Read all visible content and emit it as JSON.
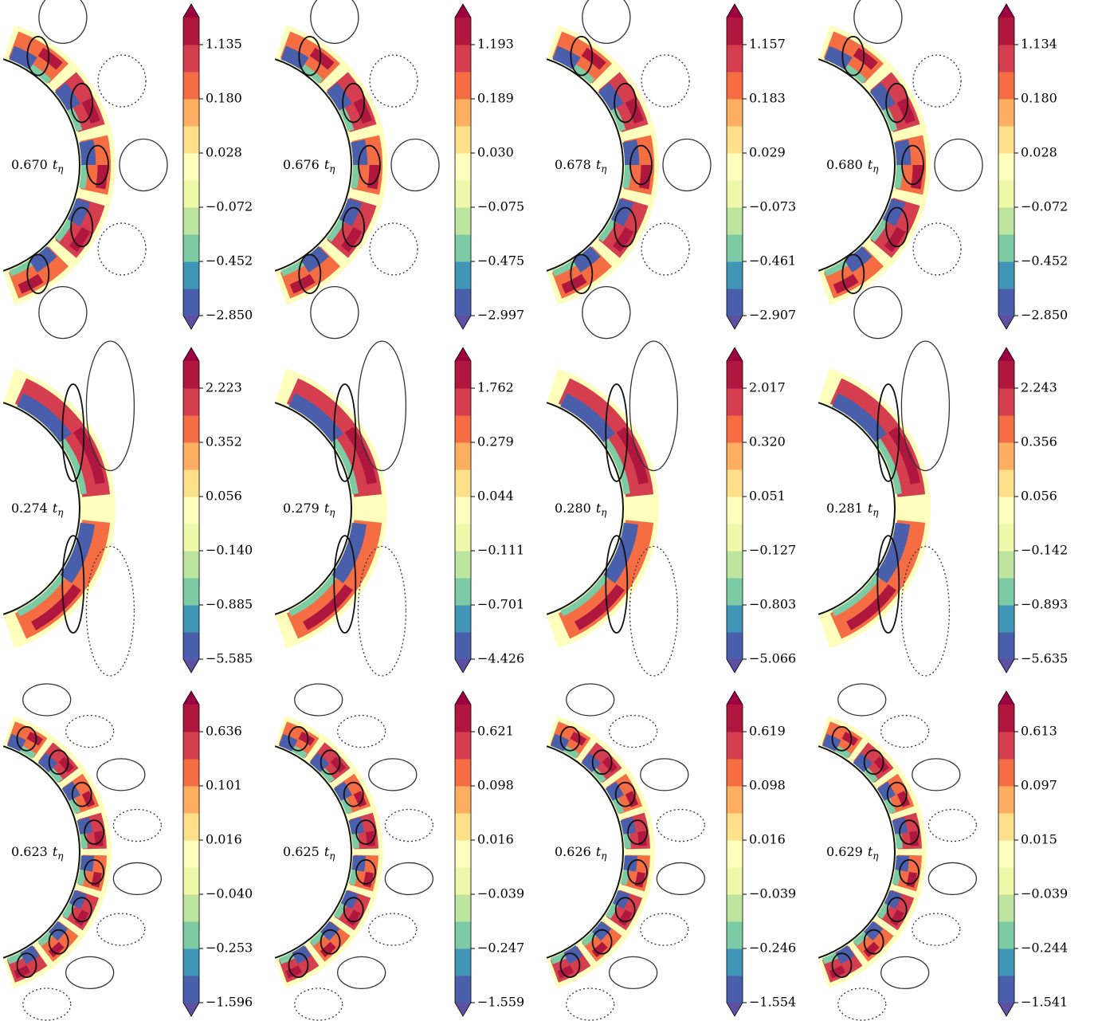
{
  "chart_data": [
    {
      "type": "contour",
      "annotation": "0.670",
      "annotation_unit": "t",
      "annotation_unit_subscript": "η",
      "colorbar": {
        "ticks": [
          {
            "value": -2.85,
            "label": "−2.850"
          },
          {
            "value": -0.452,
            "label": "−0.452"
          },
          {
            "value": -0.072,
            "label": "−0.072"
          },
          0.028,
          {
            "value": 0.18,
            "label": "0.180"
          },
          1.135
        ]
      }
    },
    {
      "type": "contour",
      "annotation": "0.676",
      "annotation_unit": "t",
      "annotation_unit_subscript": "η",
      "colorbar": {
        "ticks": [
          {
            "value": -2.997,
            "label": "−2.997"
          },
          {
            "value": -0.475,
            "label": "−0.475"
          },
          {
            "value": -0.075,
            "label": "−0.075"
          },
          {
            "value": 0.03,
            "label": "0.030"
          },
          0.189,
          1.193
        ]
      }
    },
    {
      "type": "contour",
      "annotation": "0.678",
      "annotation_unit": "t",
      "annotation_unit_subscript": "η",
      "colorbar": {
        "ticks": [
          {
            "value": -2.907,
            "label": "−2.907"
          },
          {
            "value": -0.461,
            "label": "−0.461"
          },
          {
            "value": -0.073,
            "label": "−0.073"
          },
          0.029,
          0.183,
          1.157
        ]
      }
    },
    {
      "type": "contour",
      "annotation": "0.680",
      "annotation_unit": "t",
      "annotation_unit_subscript": "η",
      "colorbar": {
        "ticks": [
          {
            "value": -2.85,
            "label": "−2.850"
          },
          {
            "value": -0.452,
            "label": "−0.452"
          },
          {
            "value": -0.072,
            "label": "−0.072"
          },
          0.028,
          {
            "value": 0.18,
            "label": "0.180"
          },
          1.134
        ]
      }
    },
    {
      "type": "contour",
      "annotation": "0.274",
      "annotation_unit": "t",
      "annotation_unit_subscript": "η",
      "colorbar": {
        "ticks": [
          {
            "value": -5.585,
            "label": "−5.585"
          },
          {
            "value": -0.885,
            "label": "−0.885"
          },
          {
            "value": -0.14,
            "label": "−0.140"
          },
          0.056,
          0.352,
          2.223
        ]
      }
    },
    {
      "type": "contour",
      "annotation": "0.279",
      "annotation_unit": "t",
      "annotation_unit_subscript": "η",
      "colorbar": {
        "ticks": [
          {
            "value": -4.426,
            "label": "−4.426"
          },
          {
            "value": -0.701,
            "label": "−0.701"
          },
          {
            "value": -0.111,
            "label": "−0.111"
          },
          0.044,
          0.279,
          1.762
        ]
      }
    },
    {
      "type": "contour",
      "annotation": "0.280",
      "annotation_unit": "t",
      "annotation_unit_subscript": "η",
      "colorbar": {
        "ticks": [
          {
            "value": -5.066,
            "label": "−5.066"
          },
          {
            "value": -0.803,
            "label": "−0.803"
          },
          {
            "value": -0.127,
            "label": "−0.127"
          },
          0.051,
          {
            "value": 0.32,
            "label": "0.320"
          },
          2.017
        ]
      }
    },
    {
      "type": "contour",
      "annotation": "0.281",
      "annotation_unit": "t",
      "annotation_unit_subscript": "η",
      "colorbar": {
        "ticks": [
          {
            "value": -5.635,
            "label": "−5.635"
          },
          {
            "value": -0.893,
            "label": "−0.893"
          },
          {
            "value": -0.142,
            "label": "−0.142"
          },
          0.056,
          0.356,
          2.243
        ]
      }
    },
    {
      "type": "contour",
      "annotation": "0.623",
      "annotation_unit": "t",
      "annotation_unit_subscript": "η",
      "colorbar": {
        "ticks": [
          {
            "value": -1.596,
            "label": "−1.596"
          },
          {
            "value": -0.253,
            "label": "−0.253"
          },
          {
            "value": -0.04,
            "label": "−0.040"
          },
          0.016,
          0.101,
          0.636
        ]
      }
    },
    {
      "type": "contour",
      "annotation": "0.625",
      "annotation_unit": "t",
      "annotation_unit_subscript": "η",
      "colorbar": {
        "ticks": [
          {
            "value": -1.559,
            "label": "−1.559"
          },
          {
            "value": -0.247,
            "label": "−0.247"
          },
          {
            "value": -0.039,
            "label": "−0.039"
          },
          0.016,
          0.098,
          0.621
        ]
      }
    },
    {
      "type": "contour",
      "annotation": "0.626",
      "annotation_unit": "t",
      "annotation_unit_subscript": "η",
      "colorbar": {
        "ticks": [
          {
            "value": -1.554,
            "label": "−1.554"
          },
          {
            "value": -0.246,
            "label": "−0.246"
          },
          {
            "value": -0.039,
            "label": "−0.039"
          },
          0.016,
          0.098,
          0.619
        ]
      }
    },
    {
      "type": "contour",
      "annotation": "0.629",
      "annotation_unit": "t",
      "annotation_unit_subscript": "η",
      "colorbar": {
        "ticks": [
          {
            "value": -1.541,
            "label": "−1.541"
          },
          {
            "value": -0.244,
            "label": "−0.244"
          },
          {
            "value": -0.039,
            "label": "−0.039"
          },
          0.015,
          0.097,
          0.613
        ]
      }
    }
  ],
  "colormap": {
    "colors": [
      "#4a5fab",
      "#3f96b7",
      "#7ccba4",
      "#bde5a0",
      "#eef8a8",
      "#fefebd",
      "#fee08b",
      "#fdae61",
      "#f46d43",
      "#d53e4f",
      "#b0173e"
    ],
    "under_color": "#5e4fa2",
    "over_color": "#9e0142"
  }
}
